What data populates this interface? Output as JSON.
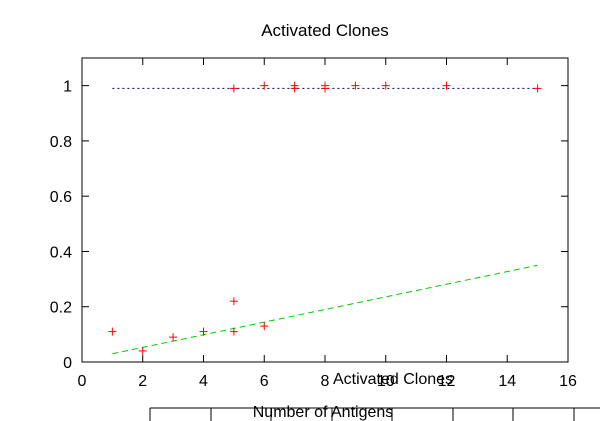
{
  "chart_data": {
    "type": "scatter",
    "title": "Activated Clones",
    "xlabel": "Number of Antigens",
    "ylabel": "",
    "xlim": [
      0,
      16
    ],
    "ylim": [
      0,
      1.1
    ],
    "xticks": [
      0,
      2,
      4,
      6,
      8,
      10,
      12,
      14,
      16
    ],
    "yticks": [
      0,
      0.2,
      0.4,
      0.6,
      0.8,
      1
    ],
    "grid": false,
    "legend": "none",
    "series": [
      {
        "kind": "points",
        "marker": "plus",
        "color": "#ff0000",
        "points": [
          {
            "x": 1,
            "y": 0.11
          },
          {
            "x": 2,
            "y": 0.04
          },
          {
            "x": 3,
            "y": 0.09
          },
          {
            "x": 4,
            "y": 0.11
          },
          {
            "x": 5,
            "y": 0.22
          },
          {
            "x": 5,
            "y": 0.11
          },
          {
            "x": 6,
            "y": 0.13
          },
          {
            "x": 5,
            "y": 0.99
          },
          {
            "x": 6,
            "y": 1.0
          },
          {
            "x": 7,
            "y": 1.0
          },
          {
            "x": 7,
            "y": 0.99
          },
          {
            "x": 8,
            "y": 1.0
          },
          {
            "x": 8,
            "y": 0.99
          },
          {
            "x": 9,
            "y": 1.0
          },
          {
            "x": 10,
            "y": 1.0
          },
          {
            "x": 12,
            "y": 1.0
          },
          {
            "x": 15,
            "y": 0.99
          }
        ]
      },
      {
        "kind": "fit-line",
        "style": "dashed",
        "color": "#00cc00",
        "points": [
          {
            "x": 1,
            "y": 0.03
          },
          {
            "x": 15,
            "y": 0.35
          }
        ]
      },
      {
        "kind": "fit-line",
        "style": "dotted",
        "color": "#000080",
        "points": [
          {
            "x": 1,
            "y": 0.99
          },
          {
            "x": 15,
            "y": 0.99
          }
        ]
      }
    ],
    "overlay_axis": {
      "label": "Activated Clones",
      "xlabel": "Number of Antigens"
    }
  }
}
